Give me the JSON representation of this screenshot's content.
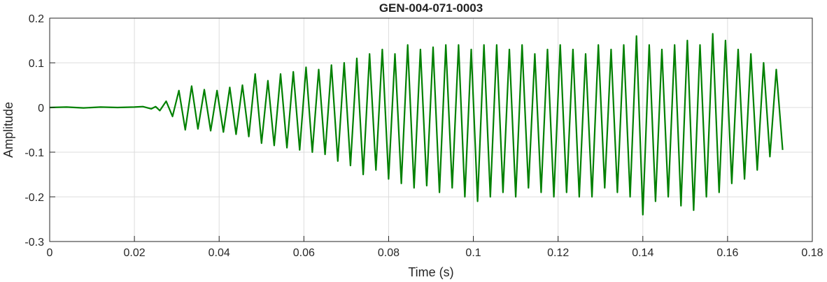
{
  "chart_data": {
    "type": "line",
    "title": "GEN-004-071-0003",
    "xlabel": "Time (s)",
    "ylabel": "Amplitude",
    "xlim": [
      0,
      0.18
    ],
    "ylim": [
      -0.3,
      0.2
    ],
    "x_ticks": [
      0,
      0.02,
      0.04,
      0.06,
      0.08,
      0.1,
      0.12,
      0.14,
      0.16,
      0.18
    ],
    "x_tick_labels": [
      "0",
      "0.02",
      "0.04",
      "0.06",
      "0.08",
      "0.1",
      "0.12",
      "0.14",
      "0.16",
      "0.18"
    ],
    "y_ticks": [
      -0.3,
      -0.2,
      -0.1,
      0,
      0.1,
      0.2
    ],
    "y_tick_labels": [
      "-0.3",
      "-0.2",
      "-0.1",
      "0",
      "0.1",
      "0.2"
    ],
    "grid": true,
    "series": [
      {
        "color": "#008000",
        "x": [
          0,
          0.004,
          0.008,
          0.012,
          0.016,
          0.02,
          0.022,
          0.024,
          0.025,
          0.026,
          0.0275,
          0.029,
          0.0305,
          0.032,
          0.0335,
          0.035,
          0.0365,
          0.038,
          0.0395,
          0.041,
          0.0425,
          0.044,
          0.0455,
          0.047,
          0.0485,
          0.05,
          0.0515,
          0.053,
          0.0545,
          0.056,
          0.0575,
          0.059,
          0.0605,
          0.062,
          0.0635,
          0.065,
          0.0665,
          0.068,
          0.0695,
          0.071,
          0.0725,
          0.074,
          0.0755,
          0.077,
          0.0785,
          0.08,
          0.0815,
          0.083,
          0.0845,
          0.086,
          0.0875,
          0.089,
          0.0905,
          0.092,
          0.0935,
          0.095,
          0.0965,
          0.098,
          0.0995,
          0.101,
          0.1025,
          0.104,
          0.1055,
          0.107,
          0.1085,
          0.11,
          0.1115,
          0.113,
          0.1145,
          0.116,
          0.1175,
          0.119,
          0.1205,
          0.122,
          0.1235,
          0.125,
          0.1265,
          0.128,
          0.1295,
          0.131,
          0.1325,
          0.134,
          0.1355,
          0.137,
          0.1385,
          0.14,
          0.1415,
          0.143,
          0.1445,
          0.146,
          0.1475,
          0.149,
          0.1505,
          0.152,
          0.1535,
          0.155,
          0.1565,
          0.158,
          0.1595,
          0.161,
          0.1625,
          0.164,
          0.1655,
          0.167,
          0.1685,
          0.17,
          0.1715,
          0.173
        ],
        "y": [
          0,
          0.001,
          -0.001,
          0.001,
          0,
          0.001,
          0.002,
          -0.003,
          0.002,
          -0.007,
          0.014,
          -0.02,
          0.038,
          -0.05,
          0.048,
          -0.048,
          0.04,
          -0.052,
          0.038,
          -0.055,
          0.045,
          -0.06,
          0.05,
          -0.065,
          0.075,
          -0.08,
          0.06,
          -0.085,
          0.075,
          -0.09,
          0.08,
          -0.095,
          0.09,
          -0.1,
          0.085,
          -0.105,
          0.095,
          -0.12,
          0.1,
          -0.13,
          0.11,
          -0.15,
          0.12,
          -0.14,
          0.13,
          -0.16,
          0.12,
          -0.17,
          0.14,
          -0.18,
          0.13,
          -0.175,
          0.135,
          -0.19,
          0.14,
          -0.18,
          0.14,
          -0.2,
          0.13,
          -0.21,
          0.14,
          -0.2,
          0.14,
          -0.19,
          0.13,
          -0.2,
          0.14,
          -0.18,
          0.12,
          -0.19,
          0.13,
          -0.2,
          0.14,
          -0.19,
          0.13,
          -0.2,
          0.12,
          -0.2,
          0.14,
          -0.18,
          0.13,
          -0.19,
          0.14,
          -0.2,
          0.16,
          -0.24,
          0.14,
          -0.21,
          0.13,
          -0.2,
          0.14,
          -0.22,
          0.15,
          -0.23,
          0.14,
          -0.2,
          0.165,
          -0.19,
          0.15,
          -0.17,
          0.13,
          -0.16,
          0.12,
          -0.14,
          0.1,
          -0.11,
          0.085,
          -0.095
        ]
      }
    ]
  }
}
